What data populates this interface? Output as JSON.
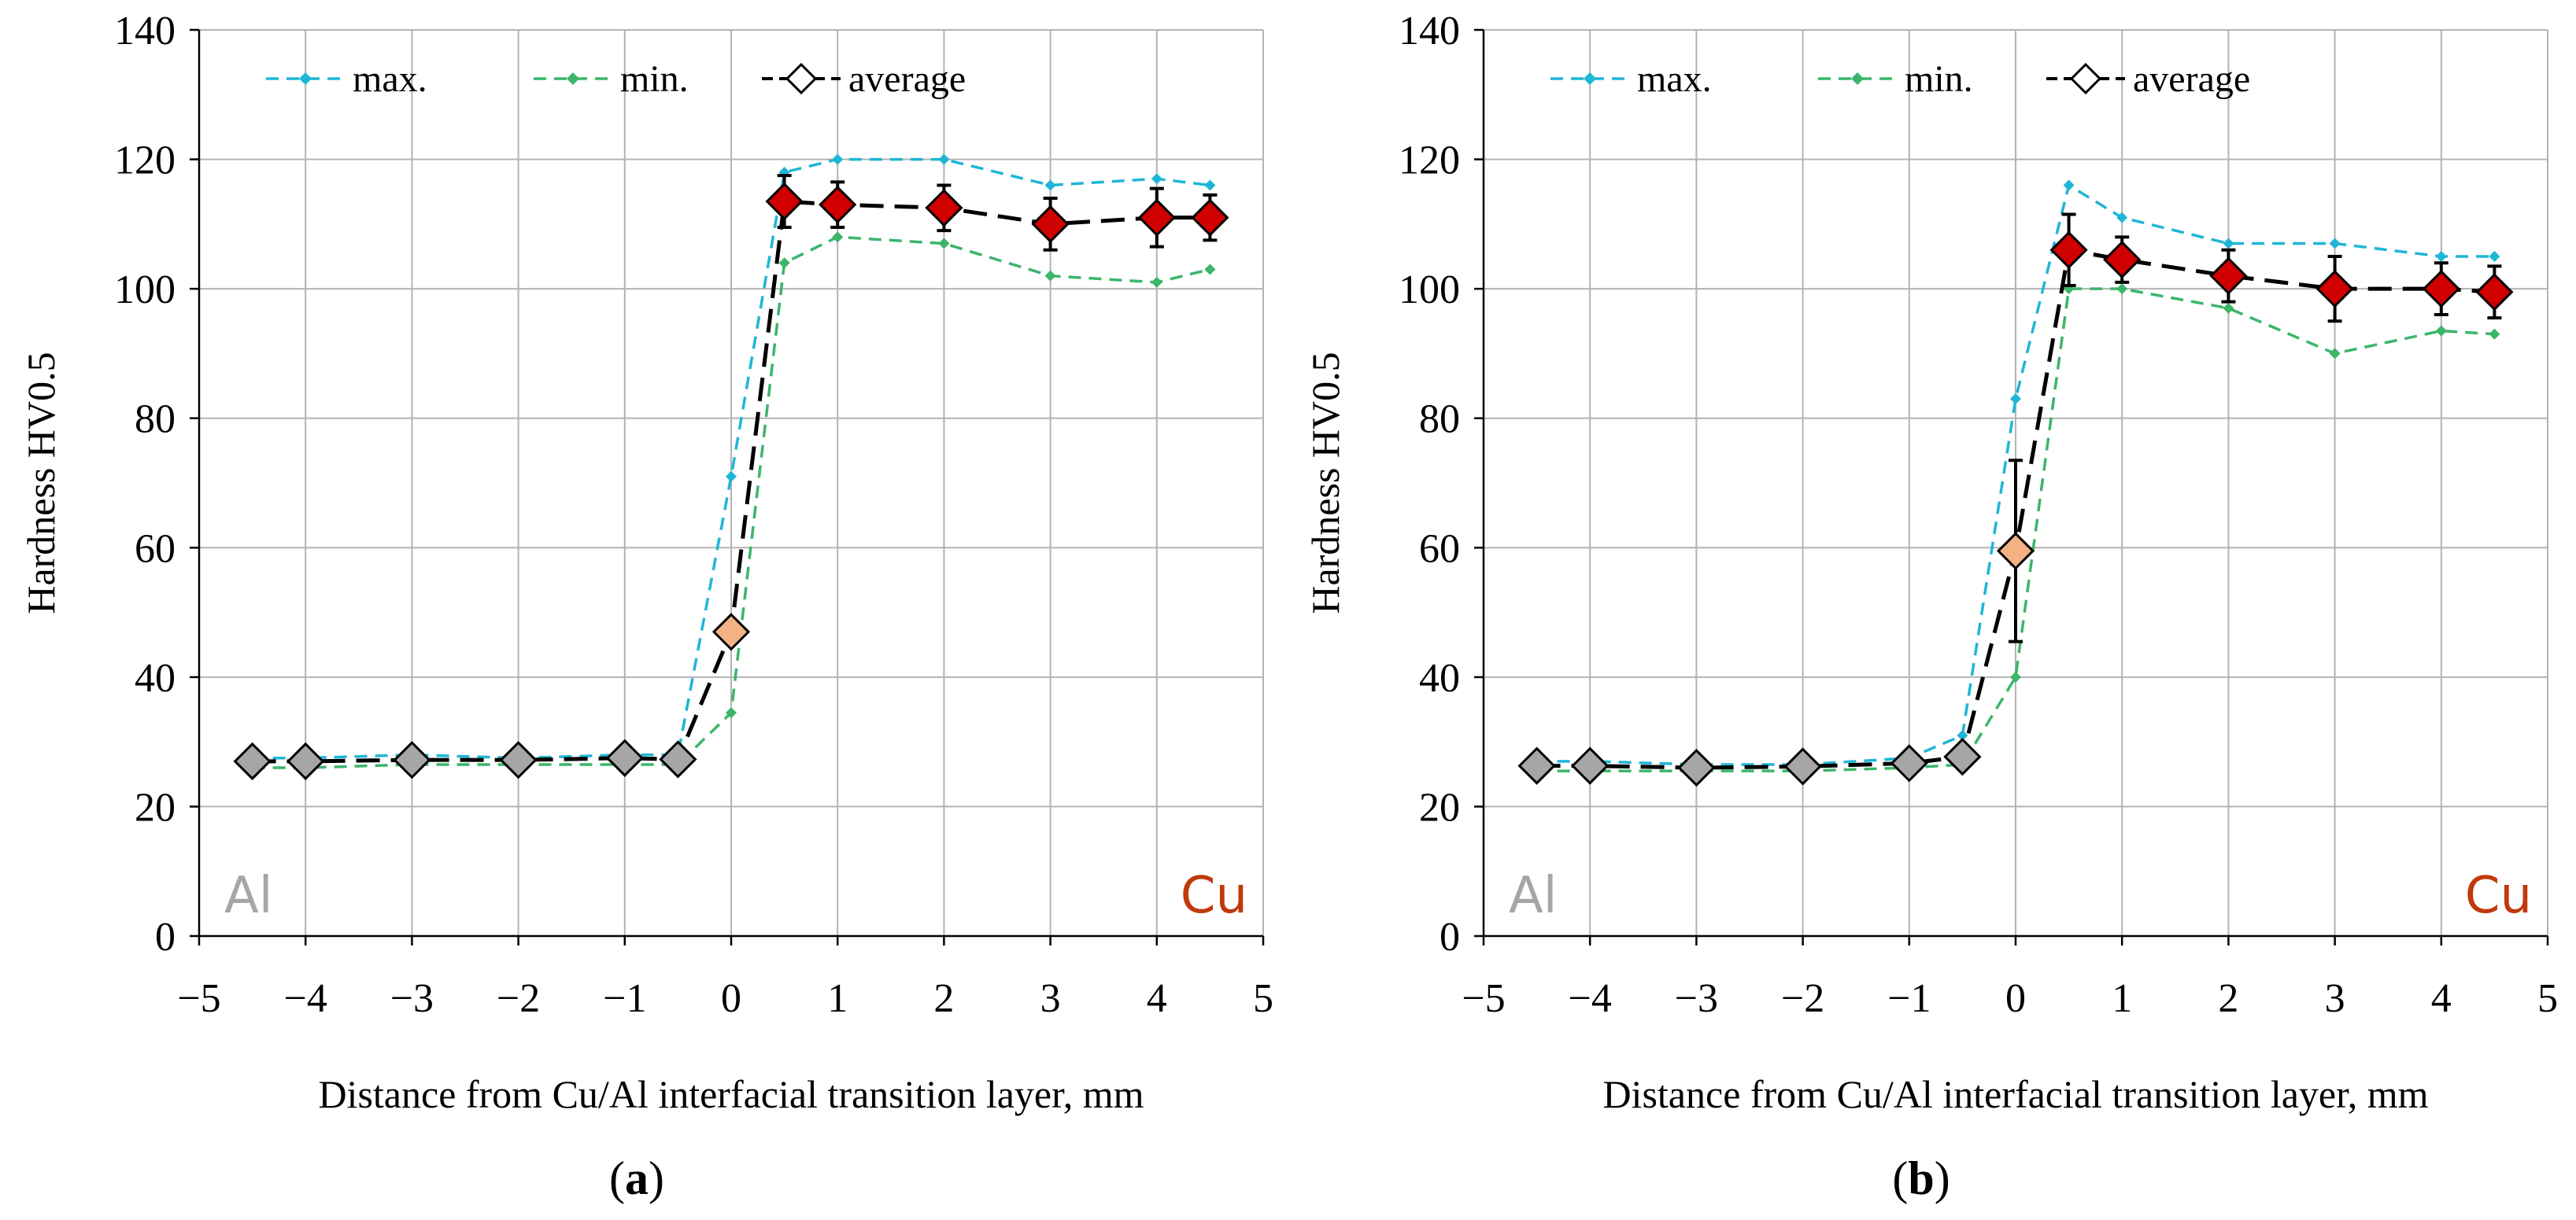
{
  "colors": {
    "max": "#1fb6d6",
    "min": "#3cb56a",
    "average_line": "#000000",
    "marker_al": "#a6a6a6",
    "marker_transition": "#f4b183",
    "marker_cu": "#d00000",
    "label_al": "#a6a6a6",
    "label_cu": "#c0390b",
    "grid": "#b3b3b3"
  },
  "chart_data": [
    {
      "type": "line",
      "caption_letter": "a",
      "xlabel": "Distance from Cu/Al interfacial transition layer, mm",
      "ylabel": "Hardness HV0.5",
      "xlim": [
        -5,
        5
      ],
      "ylim": [
        0,
        140
      ],
      "x_ticks": [
        "−5",
        "−4",
        "−3",
        "−2",
        "−1",
        "0",
        "1",
        "2",
        "3",
        "4",
        "5"
      ],
      "y_ticks": [
        "0",
        "20",
        "40",
        "60",
        "80",
        "100",
        "120",
        "140"
      ],
      "legend": [
        "max.",
        "min.",
        "average"
      ],
      "region_labels": {
        "left": "Al",
        "right": "Cu"
      },
      "x": [
        -4.5,
        -4,
        -3,
        -2,
        -1,
        -0.5,
        0,
        0.5,
        1,
        2,
        3,
        4,
        4.5
      ],
      "series": [
        {
          "name": "max.",
          "values": [
            27.5,
            27.5,
            28,
            27.5,
            28,
            28,
            71,
            118,
            120,
            120,
            116,
            117,
            116
          ]
        },
        {
          "name": "min.",
          "values": [
            26,
            26,
            26.5,
            26.5,
            26.5,
            26.5,
            34.5,
            104,
            108,
            107,
            102,
            101,
            103
          ]
        },
        {
          "name": "average",
          "values": [
            27,
            27,
            27.2,
            27.2,
            27.5,
            27.3,
            47,
            113.5,
            113,
            112.5,
            110,
            111,
            111
          ],
          "error": [
            0,
            0,
            0,
            0,
            0,
            0,
            0,
            4,
            3.5,
            3.5,
            4,
            4.5,
            3.5
          ],
          "marker_class": [
            "al",
            "al",
            "al",
            "al",
            "al",
            "al",
            "transition",
            "cu",
            "cu",
            "cu",
            "cu",
            "cu",
            "cu"
          ]
        }
      ]
    },
    {
      "type": "line",
      "caption_letter": "b",
      "xlabel": "Distance from Cu/Al interfacial transition layer, mm",
      "ylabel": "Hardness HV0.5",
      "xlim": [
        -5,
        5
      ],
      "ylim": [
        0,
        140
      ],
      "x_ticks": [
        "−5",
        "−4",
        "−3",
        "−2",
        "−1",
        "0",
        "1",
        "2",
        "3",
        "4",
        "5"
      ],
      "y_ticks": [
        "0",
        "20",
        "40",
        "60",
        "80",
        "100",
        "120",
        "140"
      ],
      "legend": [
        "max.",
        "min.",
        "average"
      ],
      "region_labels": {
        "left": "Al",
        "right": "Cu"
      },
      "x": [
        -4.5,
        -4,
        -3,
        -2,
        -1,
        -0.5,
        0,
        0.5,
        1,
        2,
        3,
        4,
        4.5
      ],
      "series": [
        {
          "name": "max.",
          "values": [
            27,
            27,
            26.5,
            26.5,
            27.5,
            31,
            83,
            116,
            111,
            107,
            107,
            105,
            105
          ]
        },
        {
          "name": "min.",
          "values": [
            25.5,
            25.5,
            25.5,
            25.5,
            26,
            26.5,
            40,
            100,
            100,
            97,
            90,
            93.5,
            93
          ]
        },
        {
          "name": "average",
          "values": [
            26.3,
            26.3,
            26,
            26.2,
            26.7,
            27.7,
            59.5,
            106,
            104.5,
            102,
            100,
            100,
            99.5
          ],
          "error": [
            0,
            0,
            0,
            0,
            0,
            0,
            14,
            5.5,
            3.5,
            4,
            5,
            4,
            4
          ],
          "marker_class": [
            "al",
            "al",
            "al",
            "al",
            "al",
            "al",
            "transition",
            "cu",
            "cu",
            "cu",
            "cu",
            "cu",
            "cu"
          ]
        }
      ]
    }
  ]
}
